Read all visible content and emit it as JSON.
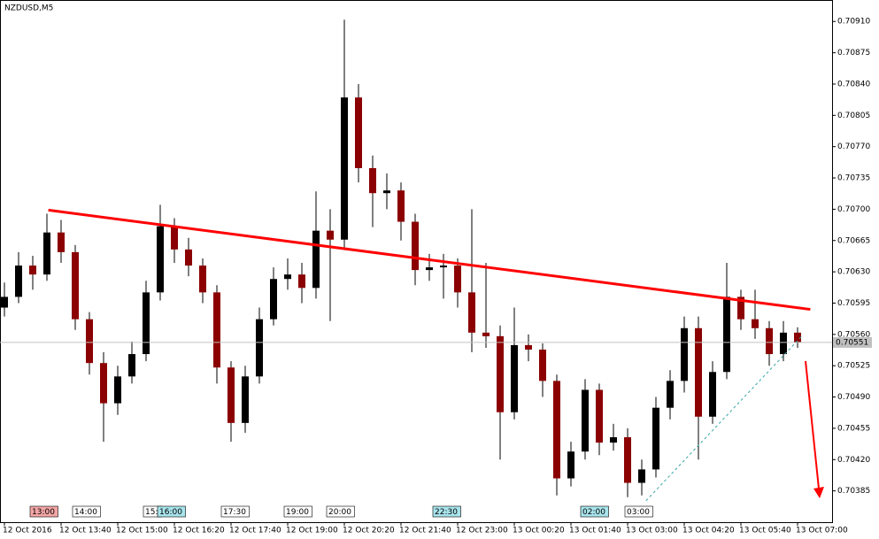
{
  "chart_data": {
    "type": "candlestick",
    "title": "NZDUSD,M5",
    "bull_color": "#000000",
    "bear_color": "#8b0000",
    "wick_color": "#000000",
    "ylim": [
      0.7035,
      0.70934
    ],
    "yticks": [
      {
        "value": 0.70385,
        "label": "0.70385"
      },
      {
        "value": 0.7042,
        "label": "0.70420"
      },
      {
        "value": 0.70455,
        "label": "0.70455"
      },
      {
        "value": 0.7049,
        "label": "0.70490"
      },
      {
        "value": 0.70525,
        "label": "0.70525"
      },
      {
        "value": 0.7056,
        "label": "0.70560"
      },
      {
        "value": 0.70595,
        "label": "0.70595"
      },
      {
        "value": 0.7063,
        "label": "0.70630"
      },
      {
        "value": 0.70665,
        "label": "0.70665"
      },
      {
        "value": 0.707,
        "label": "0.70700"
      },
      {
        "value": 0.70735,
        "label": "0.70735"
      },
      {
        "value": 0.7077,
        "label": "0.70770"
      },
      {
        "value": 0.70805,
        "label": "0.70805"
      },
      {
        "value": 0.7084,
        "label": "0.70840"
      },
      {
        "value": 0.70875,
        "label": "0.70875"
      },
      {
        "value": 0.7091,
        "label": "0.70910"
      }
    ],
    "categories": [
      "12 Oct 2016",
      null,
      null,
      null,
      "12 Oct 13:40",
      null,
      null,
      null,
      "12 Oct 15:00",
      null,
      null,
      null,
      "12 Oct 16:20",
      null,
      null,
      null,
      "12 Oct 17:40",
      null,
      null,
      null,
      "12 Oct 19:00",
      null,
      null,
      null,
      "12 Oct 20:20",
      null,
      null,
      null,
      "12 Oct 21:40",
      null,
      null,
      null,
      "12 Oct 23:00",
      null,
      null,
      null,
      "13 Oct 00:20",
      null,
      null,
      null,
      "13 Oct 01:40",
      null,
      null,
      null,
      "13 Oct 03:00",
      null,
      null,
      null,
      "13 Oct 04:20",
      null,
      null,
      null,
      "13 Oct 05:40",
      null,
      null,
      null,
      "13 Oct 07:00"
    ],
    "candles": [
      [
        0.7059,
        0.70618,
        0.7058,
        0.70602
      ],
      [
        0.70602,
        0.70652,
        0.70595,
        0.70637
      ],
      [
        0.70637,
        0.70648,
        0.7061,
        0.70627
      ],
      [
        0.70627,
        0.70695,
        0.7062,
        0.70674
      ],
      [
        0.70674,
        0.70688,
        0.7064,
        0.70652
      ],
      [
        0.70652,
        0.7066,
        0.70565,
        0.70577
      ],
      [
        0.70577,
        0.70585,
        0.70515,
        0.70528
      ],
      [
        0.70528,
        0.7054,
        0.7044,
        0.70483
      ],
      [
        0.70483,
        0.70525,
        0.7047,
        0.70513
      ],
      [
        0.70513,
        0.70552,
        0.70505,
        0.70538
      ],
      [
        0.70538,
        0.7062,
        0.7053,
        0.70607
      ],
      [
        0.70607,
        0.70705,
        0.70598,
        0.70681
      ],
      [
        0.70681,
        0.7069,
        0.7064,
        0.70655
      ],
      [
        0.70655,
        0.70668,
        0.70625,
        0.70637
      ],
      [
        0.70637,
        0.70645,
        0.70595,
        0.70607
      ],
      [
        0.70607,
        0.70615,
        0.70505,
        0.70523
      ],
      [
        0.70523,
        0.7053,
        0.7044,
        0.70461
      ],
      [
        0.70461,
        0.70525,
        0.7045,
        0.70513
      ],
      [
        0.70513,
        0.7059,
        0.70505,
        0.70577
      ],
      [
        0.70577,
        0.70635,
        0.7057,
        0.70622
      ],
      [
        0.70622,
        0.70645,
        0.7061,
        0.70627
      ],
      [
        0.70627,
        0.7064,
        0.70595,
        0.70612
      ],
      [
        0.70612,
        0.7072,
        0.706,
        0.70676
      ],
      [
        0.70676,
        0.707,
        0.70575,
        0.70666
      ],
      [
        0.70666,
        0.70912,
        0.70655,
        0.70825
      ],
      [
        0.70825,
        0.7084,
        0.7073,
        0.70746
      ],
      [
        0.70746,
        0.7076,
        0.7068,
        0.70718
      ],
      [
        0.70718,
        0.7074,
        0.707,
        0.70721
      ],
      [
        0.70721,
        0.7073,
        0.70665,
        0.70686
      ],
      [
        0.70686,
        0.70695,
        0.70615,
        0.70632
      ],
      [
        0.70632,
        0.7065,
        0.7062,
        0.70635
      ],
      [
        0.70635,
        0.7065,
        0.706,
        0.70637
      ],
      [
        0.70637,
        0.70645,
        0.7059,
        0.70607
      ],
      [
        0.70607,
        0.707,
        0.7054,
        0.70562
      ],
      [
        0.70562,
        0.7064,
        0.70545,
        0.70558
      ],
      [
        0.70558,
        0.7057,
        0.7042,
        0.70473
      ],
      [
        0.70473,
        0.7059,
        0.70465,
        0.70548
      ],
      [
        0.70548,
        0.7056,
        0.7053,
        0.70543
      ],
      [
        0.70543,
        0.7055,
        0.7049,
        0.70508
      ],
      [
        0.70508,
        0.70515,
        0.7038,
        0.70399
      ],
      [
        0.70399,
        0.7044,
        0.7039,
        0.70429
      ],
      [
        0.70429,
        0.7051,
        0.7042,
        0.70498
      ],
      [
        0.70498,
        0.70505,
        0.70425,
        0.70439
      ],
      [
        0.70439,
        0.7046,
        0.7043,
        0.70445
      ],
      [
        0.70445,
        0.70455,
        0.70378,
        0.70394
      ],
      [
        0.70394,
        0.7042,
        0.7038,
        0.70409
      ],
      [
        0.70409,
        0.7049,
        0.704,
        0.70478
      ],
      [
        0.70478,
        0.7052,
        0.70465,
        0.70508
      ],
      [
        0.70508,
        0.7058,
        0.70495,
        0.70567
      ],
      [
        0.70567,
        0.7058,
        0.7042,
        0.70468
      ],
      [
        0.70468,
        0.7053,
        0.7046,
        0.70518
      ],
      [
        0.70518,
        0.7064,
        0.7051,
        0.70602
      ],
      [
        0.70602,
        0.7061,
        0.70565,
        0.70577
      ],
      [
        0.70577,
        0.7061,
        0.70555,
        0.70567
      ],
      [
        0.70567,
        0.70575,
        0.70525,
        0.70538
      ],
      [
        0.70538,
        0.70575,
        0.7053,
        0.70562
      ],
      [
        0.70562,
        0.70568,
        0.70545,
        0.70551
      ]
    ],
    "trendlines": [
      {
        "color": "#ff0000",
        "from": [
          3.1,
          0.70699
        ],
        "to": [
          56.9,
          0.70588
        ]
      },
      {
        "color": "#3aa6a6",
        "from": [
          45.3,
          0.70374
        ],
        "to": [
          56.3,
          0.70558
        ]
      }
    ],
    "sessions": [
      {
        "text": "13:00",
        "color": "#f4a6a6"
      },
      {
        "text": "14:00",
        "color": "#ffffff"
      },
      {
        "text": "15:",
        "color": "#ffffff"
      },
      {
        "text": "16:00",
        "color": "#a8e4ec"
      },
      {
        "text": "17:30",
        "color": "#ffffff"
      },
      {
        "text": "19:00",
        "color": "#ffffff"
      },
      {
        "text": "20:00",
        "color": "#ffffff"
      },
      {
        "text": "22:30",
        "color": "#a8e4ec"
      },
      {
        "text": "02:00",
        "color": "#a8e4ec"
      },
      {
        "text": "03:00",
        "color": "#ffffff"
      }
    ]
  }
}
